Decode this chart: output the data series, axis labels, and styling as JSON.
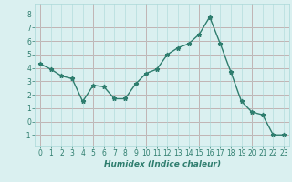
{
  "x": [
    0,
    1,
    2,
    3,
    4,
    5,
    6,
    7,
    8,
    9,
    10,
    11,
    12,
    13,
    14,
    15,
    16,
    17,
    18,
    19,
    20,
    21,
    22,
    23
  ],
  "y": [
    4.3,
    3.9,
    3.4,
    3.2,
    1.5,
    2.7,
    2.6,
    1.7,
    1.7,
    2.8,
    3.6,
    3.9,
    5.0,
    5.5,
    5.8,
    6.5,
    7.8,
    5.8,
    3.7,
    1.5,
    0.7,
    0.5,
    -1.0,
    -1.0
  ],
  "line_color": "#2e7d6e",
  "marker": "*",
  "marker_size": 3.5,
  "bg_color": "#daf0f0",
  "grid_color": "#aad8d8",
  "grid_major_color": "#e06060",
  "xlabel": "Humidex (Indice chaleur)",
  "xlim": [
    -0.5,
    23.5
  ],
  "ylim": [
    -1.8,
    8.8
  ],
  "yticks": [
    -1,
    0,
    1,
    2,
    3,
    4,
    5,
    6,
    7,
    8
  ],
  "xticks": [
    0,
    1,
    2,
    3,
    4,
    5,
    6,
    7,
    8,
    9,
    10,
    11,
    12,
    13,
    14,
    15,
    16,
    17,
    18,
    19,
    20,
    21,
    22,
    23
  ],
  "red_vlines": [
    0,
    5,
    10,
    15,
    20
  ],
  "xlabel_fontsize": 6.5,
  "tick_fontsize": 5.5,
  "tick_color": "#2e7d6e",
  "linewidth": 1.0
}
